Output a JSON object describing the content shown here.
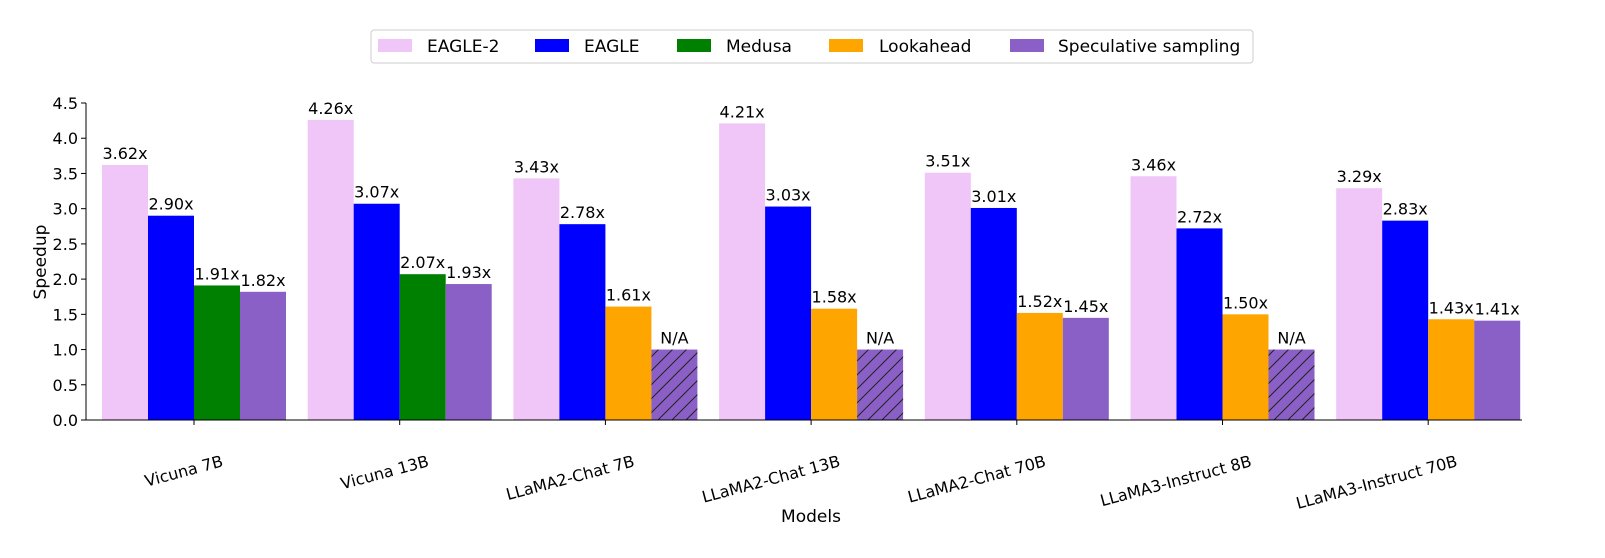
{
  "chart_data": {
    "type": "bar",
    "title": "",
    "xlabel": "Models",
    "ylabel": "Speedup",
    "ylim": [
      0,
      4.5
    ],
    "yticks": [
      "0.0",
      "0.5",
      "1.0",
      "1.5",
      "2.0",
      "2.5",
      "3.0",
      "3.5",
      "4.0",
      "4.5"
    ],
    "legend_position": "top-center",
    "categories": [
      "Vicuna 7B",
      "Vicuna 13B",
      "LLaMA2-Chat 7B",
      "LLaMA2-Chat 13B",
      "LLaMA2-Chat 70B",
      "LLaMA3-Instruct 8B",
      "LLaMA3-Instruct 70B"
    ],
    "series": [
      {
        "name": "EAGLE-2",
        "color": "#f0c5f8",
        "values": [
          3.62,
          4.26,
          3.43,
          4.21,
          3.51,
          3.46,
          3.29
        ],
        "labels": [
          "3.62x",
          "4.26x",
          "3.43x",
          "4.21x",
          "3.51x",
          "3.46x",
          "3.29x"
        ]
      },
      {
        "name": "EAGLE",
        "color": "#0000ff",
        "values": [
          2.9,
          3.07,
          2.78,
          3.03,
          3.01,
          2.72,
          2.83
        ],
        "labels": [
          "2.90x",
          "3.07x",
          "2.78x",
          "3.03x",
          "3.01x",
          "2.72x",
          "2.83x"
        ]
      },
      {
        "name": "Medusa",
        "color": "#008000",
        "values": [
          1.91,
          2.07,
          null,
          null,
          null,
          null,
          null
        ],
        "labels": [
          "1.91x",
          "2.07x",
          null,
          null,
          null,
          null,
          null
        ]
      },
      {
        "name": "Lookahead",
        "color": "#ffa500",
        "values": [
          null,
          null,
          1.61,
          1.58,
          1.52,
          1.5,
          1.43
        ],
        "labels": [
          null,
          null,
          "1.61x",
          "1.58x",
          "1.52x",
          "1.50x",
          "1.43x"
        ]
      },
      {
        "name": "Speculative sampling",
        "color": "#8a5fc6",
        "values": [
          1.82,
          1.93,
          1.0,
          1.0,
          1.45,
          1.0,
          1.41
        ],
        "labels": [
          "1.82x",
          "1.93x",
          "N/A",
          "N/A",
          "1.45x",
          "N/A",
          "1.41x"
        ],
        "hatched": [
          false,
          false,
          true,
          true,
          false,
          true,
          false
        ]
      }
    ]
  }
}
